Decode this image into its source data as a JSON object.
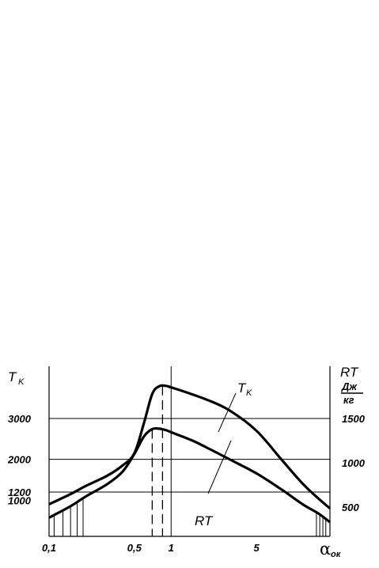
{
  "chart_data": {
    "type": "line",
    "title": "",
    "x_scale": "log",
    "xlim": [
      0.1,
      20
    ],
    "xticks": [
      "0,1",
      "0,5",
      "1",
      "5"
    ],
    "xtick_values": [
      0.1,
      0.5,
      1,
      5
    ],
    "xlabel": {
      "main": "α",
      "sub": "ок"
    },
    "ylabel_left": {
      "main": "T",
      "sub": "K"
    },
    "ylabel_right": {
      "main": "RT",
      "unit_num": "Дж",
      "unit_den": "кг"
    },
    "yticks_left": [
      "3000",
      "2000",
      "1200",
      "1000"
    ],
    "ytick_left_values": [
      3000,
      2000,
      1200,
      1000
    ],
    "yticks_right": [
      "1500",
      "1000",
      "500"
    ],
    "ytick_right_values": [
      1500,
      1000,
      500
    ],
    "grid_y": [
      3000,
      2000,
      1200
    ],
    "ref_x": 1,
    "series": [
      {
        "name": "T",
        "name_sub": "K",
        "axis": "left",
        "x": [
          0.1,
          0.15,
          0.2,
          0.3,
          0.4,
          0.5,
          0.6,
          0.7,
          0.8,
          0.9,
          1.0,
          1.3,
          2,
          3,
          5,
          8,
          12,
          16,
          20
        ],
        "y": [
          900,
          1150,
          1350,
          1600,
          1850,
          2150,
          2900,
          3600,
          3790,
          3800,
          3760,
          3650,
          3450,
          3200,
          2700,
          2000,
          1400,
          1050,
          800
        ]
      },
      {
        "name": "RT",
        "axis": "right",
        "x": [
          0.1,
          0.15,
          0.2,
          0.3,
          0.4,
          0.5,
          0.6,
          0.7,
          0.8,
          0.9,
          1.0,
          1.5,
          2,
          3,
          5,
          8,
          12,
          16,
          20
        ],
        "y": [
          380,
          510,
          620,
          760,
          900,
          1100,
          1300,
          1380,
          1385,
          1370,
          1345,
          1250,
          1165,
          1040,
          880,
          700,
          530,
          430,
          330
        ]
      }
    ],
    "dashed_x": [
      0.7,
      0.85
    ],
    "hatch_left_x": [
      0.11,
      0.13,
      0.15,
      0.17,
      0.19
    ],
    "hatch_right_x": [
      15.5,
      16.5,
      17.5,
      18.5
    ]
  }
}
